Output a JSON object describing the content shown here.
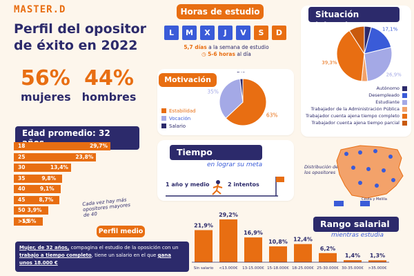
{
  "brand": "MASTER.D",
  "title": "Perfil del opositor de éxito en 2022",
  "gender": {
    "women_pct": "56%",
    "women_label": "mujeres",
    "men_pct": "44%",
    "men_label": "hombres"
  },
  "age": {
    "title": "Edad promedio: 32 años",
    "note": "Cada vez hay más opositores mayores de 40"
  },
  "hours": {
    "title": "Horas de estudio",
    "days": [
      "L",
      "M",
      "X",
      "J",
      "V",
      "S",
      "D"
    ],
    "line1_bold": "5,7 días",
    "line1_rest": "a la semana de estudio",
    "line2_bold": "5-6 horas",
    "line2_rest": "al día"
  },
  "motivation": {
    "title": "Motivación"
  },
  "time": {
    "title": "Tiempo promedio",
    "subtitle": "en lograr su meta",
    "left": "1 año y medio",
    "right": "2 intentos"
  },
  "labor": {
    "title": "Situación laboral"
  },
  "map": {
    "note": "Distribución de los opositores",
    "legend": "Ceuta y Melilla"
  },
  "salary": {
    "title": "Rango salarial",
    "subtitle": "mientras estudia"
  },
  "profile": {
    "title": "Perfil medio",
    "part1": "Mujer, de 32 años,",
    "part2": " compagina el estudio de la oposición con un ",
    "part3": "trabajo a tiempo completo",
    "part4": ", tiene un salario en el que ",
    "part5": "gana unos 18.000 €"
  },
  "colors": {
    "navy": "#2c2a6b",
    "orange": "#e86e12",
    "blue": "#3a5bd8",
    "lavender": "#a4a9e6",
    "light_orange": "#f3a26a",
    "dark_orange": "#c85a0d"
  },
  "chart_data": [
    {
      "type": "bar",
      "name": "age",
      "categories": [
        "18 a 25",
        "25 a 30",
        "30 a 35",
        "35 a 40",
        "40 a 45",
        "45 a 50",
        "50 a 55",
        ">55"
      ],
      "values": [
        29.7,
        23.8,
        13.4,
        9.8,
        9.1,
        8.7,
        3.9,
        1.6
      ],
      "labels": [
        "29,7%",
        "23,8%",
        "13,4%",
        "9,8%",
        "9,1%",
        "8,7%",
        "3,9%",
        "1,6%"
      ]
    },
    {
      "type": "pie",
      "name": "motivation",
      "categories": [
        "Estabilidad",
        "Vocación",
        "Salario"
      ],
      "values": [
        63,
        35,
        2
      ],
      "labels": [
        "63%",
        "35%",
        "2%"
      ],
      "colors": [
        "#e86e12",
        "#a4a9e6",
        "#2c2a6b"
      ]
    },
    {
      "type": "pie",
      "name": "labor",
      "categories": [
        "Autónomo",
        "Desempleado",
        "Estudiante",
        "Trabajador de la Administración Pública",
        "Trabajador cuenta ajena tiempo completo",
        "Trabajador cuenta ajena tiempo parcial"
      ],
      "values": [
        4.1,
        17.1,
        26.9,
        3.5,
        39.3,
        9.1
      ],
      "labels": [
        "4,1%",
        "17,1%",
        "26,9%",
        "3,5%",
        "39,3%",
        "9,1%"
      ],
      "colors": [
        "#2c2a6b",
        "#3a5bd8",
        "#a4a9e6",
        "#f3a26a",
        "#e86e12",
        "#c85a0d"
      ]
    },
    {
      "type": "bar",
      "name": "salary",
      "categories": [
        "Sin salario",
        "<13.000€",
        "13-15.000€",
        "15-18.000€",
        "18-25.000€",
        "25-30.000€",
        "30-35.000€",
        ">35.000€"
      ],
      "values": [
        21.9,
        29.2,
        16.9,
        10.8,
        12.4,
        6.2,
        1.4,
        1.3
      ],
      "labels": [
        "21,9%",
        "29,2%",
        "16,9%",
        "10,8%",
        "12,4%",
        "6,2%",
        "1,4%",
        "1,3%"
      ]
    }
  ]
}
